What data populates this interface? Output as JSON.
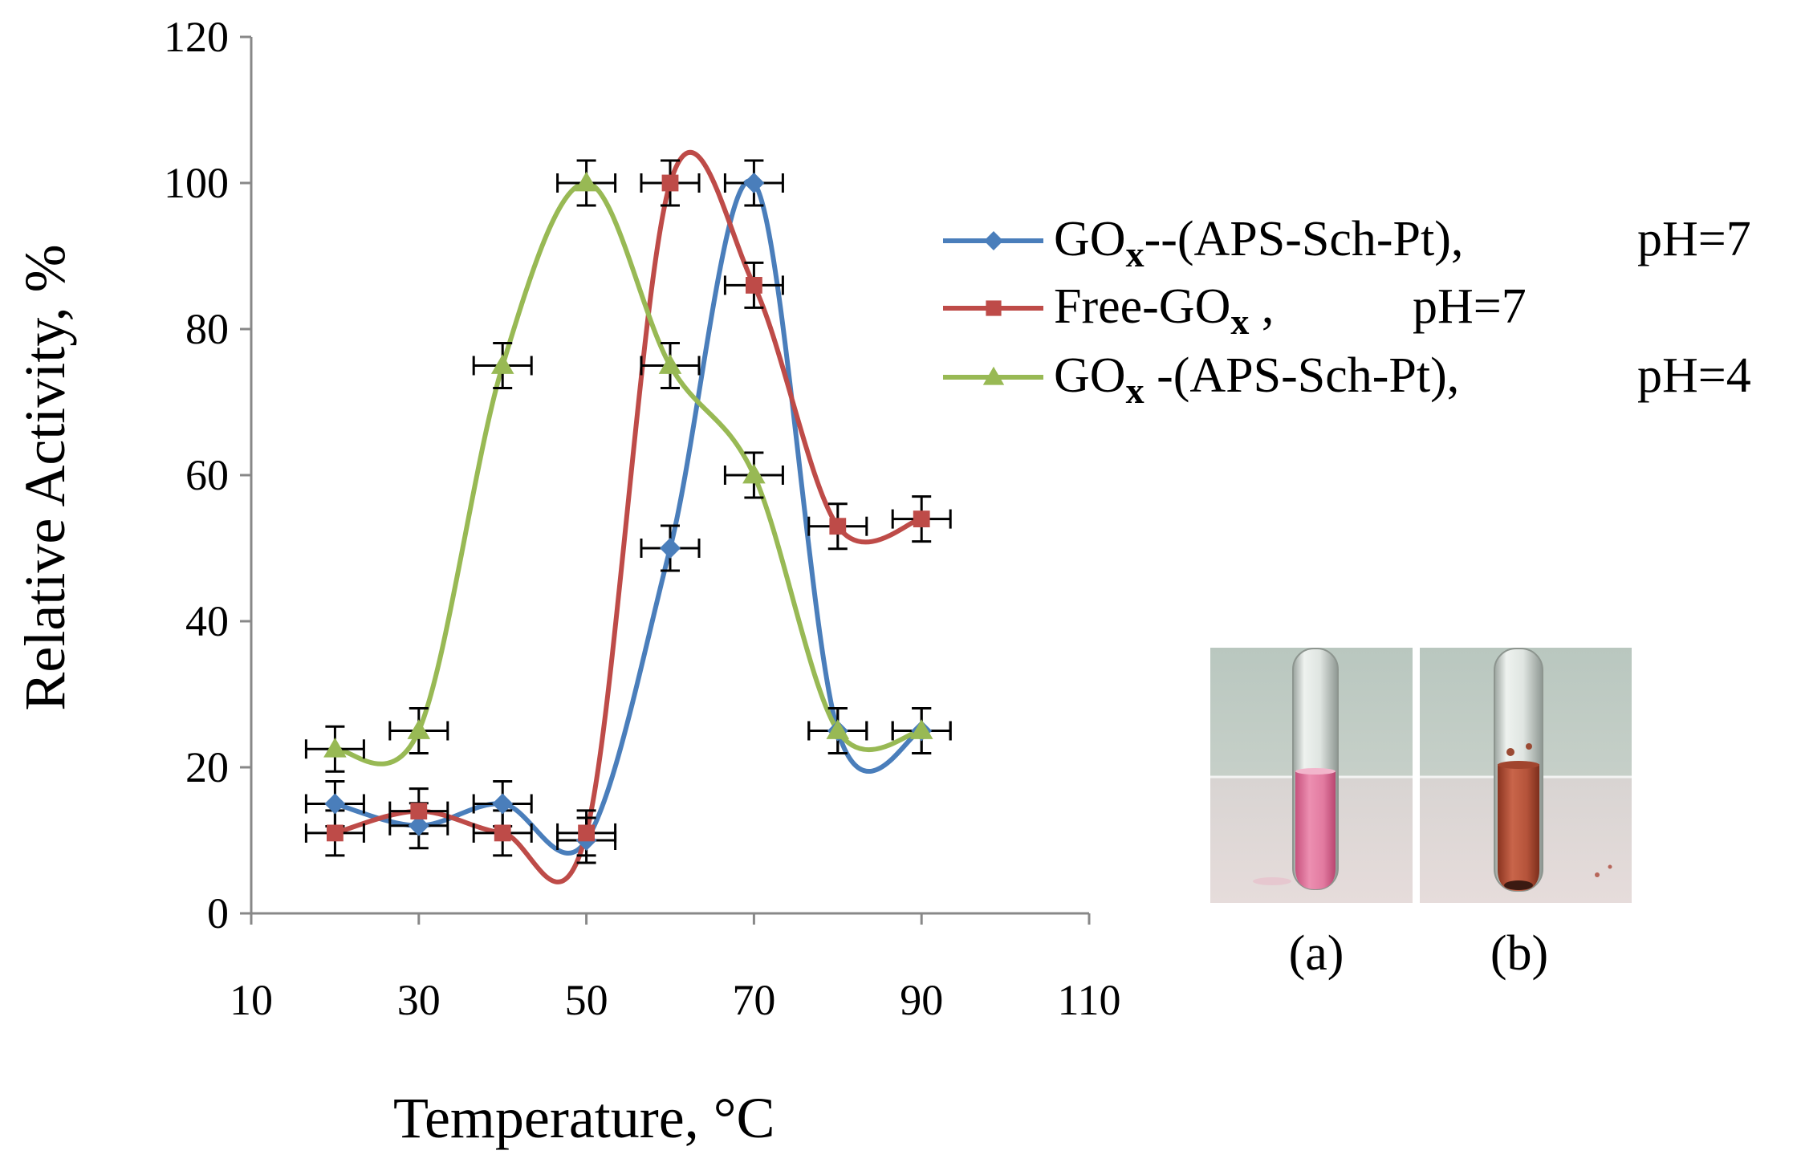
{
  "chart_data": {
    "type": "line",
    "title": "",
    "xlabel": "Temperature, ",
    "xlabel_unit": "°C",
    "ylabel": "Relative Activity, %",
    "xlim": [
      10,
      110
    ],
    "ylim": [
      0,
      120
    ],
    "xticks": [
      10,
      30,
      50,
      70,
      90,
      110
    ],
    "yticks": [
      0,
      20,
      40,
      60,
      80,
      100,
      120
    ],
    "grid": false,
    "legend_position": "right",
    "series": [
      {
        "name": "GOx--(APS-Sch-Pt),",
        "legend_main": "GO",
        "legend_sub": "x",
        "legend_rest": "--(APS-Sch-Pt),",
        "legend_ph": "pH=7",
        "marker": "diamond",
        "color": "#4a7ebb",
        "x": [
          20,
          30,
          40,
          50,
          60,
          70,
          80,
          90
        ],
        "y": [
          15,
          12,
          15,
          10,
          50,
          100,
          25,
          25
        ]
      },
      {
        "name": "Free-GOx ,",
        "legend_main": "Free-GO",
        "legend_sub": "x",
        "legend_rest": " ,",
        "legend_ph": "pH=7",
        "marker": "square",
        "color": "#be4b48",
        "x": [
          20,
          30,
          40,
          50,
          60,
          70,
          80,
          90
        ],
        "y": [
          11,
          14,
          11,
          11,
          100,
          86,
          53,
          54
        ]
      },
      {
        "name": "GOx -(APS-Sch-Pt),",
        "legend_main": "GO",
        "legend_sub": "x",
        "legend_rest": " -(APS-Sch-Pt),",
        "legend_ph": "pH=4",
        "marker": "triangle",
        "color": "#98b954",
        "x": [
          20,
          30,
          40,
          50,
          60,
          70,
          80,
          90
        ],
        "y": [
          22.5,
          25,
          75,
          100,
          75,
          60,
          25,
          25
        ]
      }
    ],
    "inset_labels": [
      "(a)",
      "(b)"
    ]
  }
}
